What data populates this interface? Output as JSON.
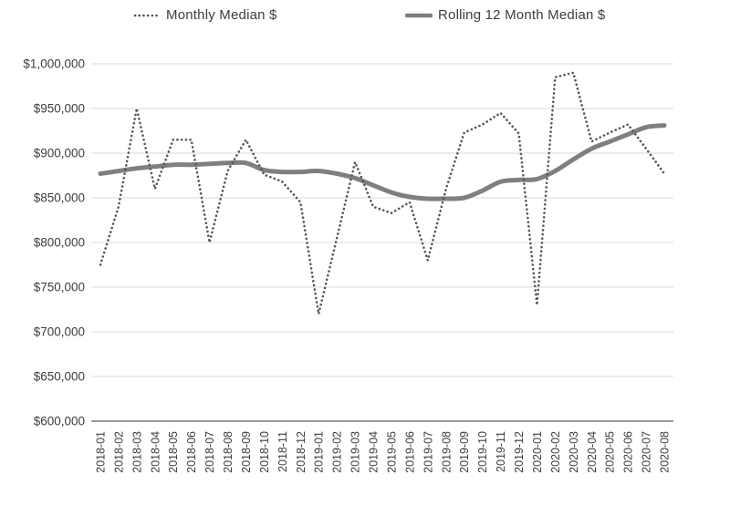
{
  "legend": {
    "monthly_label": "Monthly Median $",
    "rolling_label": "Rolling 12 Month Median $"
  },
  "colors": {
    "monthly_line": "#565656",
    "rolling_line": "#7f7f7f",
    "gridline": "#d8d8d8",
    "axis_line": "#8c8c8c",
    "label_text": "#3d3d3d"
  },
  "chart_data": {
    "type": "line",
    "title": "",
    "xlabel": "",
    "ylabel": "",
    "grid": "horizontal",
    "legend_position": "top",
    "ylim": [
      600000,
      1000000
    ],
    "y_tick_step": 50000,
    "y_tick_labels": [
      "$600,000",
      "$650,000",
      "$700,000",
      "$750,000",
      "$800,000",
      "$850,000",
      "$900,000",
      "$950,000",
      "$1,000,000"
    ],
    "categories": [
      "2018-01",
      "2018-02",
      "2018-03",
      "2018-04",
      "2018-05",
      "2018-06",
      "2018-07",
      "2018-08",
      "2018-09",
      "2018-10",
      "2018-11",
      "2018-12",
      "2019-01",
      "2019-02",
      "2019-03",
      "2019-04",
      "2019-05",
      "2019-06",
      "2019-07",
      "2019-08",
      "2019-09",
      "2019-10",
      "2019-11",
      "2019-12",
      "2020-01",
      "2020-02",
      "2020-03",
      "2020-04",
      "2020-05",
      "2020-06",
      "2020-07",
      "2020-08"
    ],
    "series": [
      {
        "name": "Monthly Median $",
        "style": "dotted",
        "values": [
          775000,
          840000,
          950000,
          860000,
          915000,
          915000,
          800000,
          880000,
          915000,
          876000,
          868000,
          845000,
          720000,
          805000,
          890000,
          840000,
          833000,
          845000,
          780000,
          860000,
          923000,
          932000,
          945000,
          922000,
          730000,
          985000,
          990000,
          913000,
          923000,
          932000,
          905000,
          877000
        ]
      },
      {
        "name": "Rolling 12 Month Median $",
        "style": "solid-thick",
        "values": [
          877000,
          880000,
          883000,
          885000,
          887000,
          887000,
          888000,
          889000,
          889000,
          881000,
          879000,
          879000,
          880000,
          877000,
          872000,
          864000,
          856000,
          851000,
          849000,
          849000,
          850000,
          858000,
          868000,
          870000,
          871000,
          880000,
          893000,
          905000,
          913000,
          921000,
          929000,
          931000
        ]
      }
    ]
  }
}
